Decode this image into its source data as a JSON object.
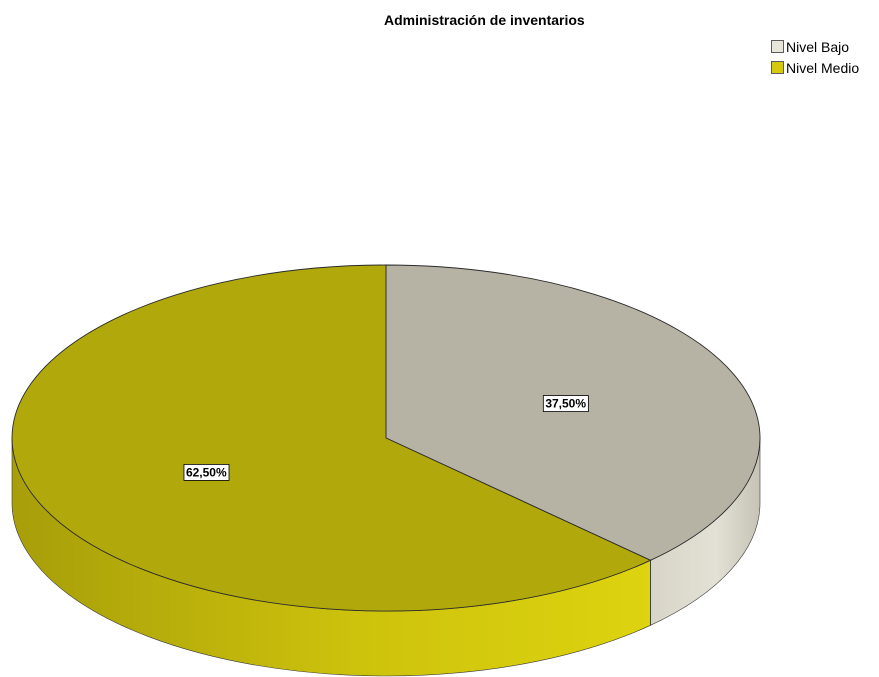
{
  "chart_data": {
    "type": "pie",
    "title": "Administración de inventarios",
    "categories": [
      "Nivel Bajo",
      "Nivel Medio"
    ],
    "values": [
      37.5,
      62.5
    ],
    "value_labels": [
      "37,50%",
      "62,50%"
    ],
    "colors": {
      "Nivel Bajo": "#e8e5da",
      "Nivel Medio": "#d4c90e"
    },
    "top_face_colors": {
      "Nivel Bajo": "#b6b2a4",
      "Nivel Medio": "#b1a80c"
    },
    "legend_placement": "top-right",
    "style": "3d-tilted"
  }
}
